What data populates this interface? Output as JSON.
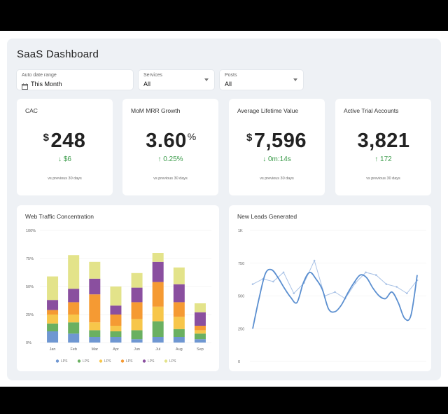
{
  "dashboard": {
    "title": "SaaS Dashboard"
  },
  "filters": [
    {
      "label": "Auto date range",
      "value": "This Month",
      "icon": "calendar-icon"
    },
    {
      "label": "Services",
      "value": "All",
      "icon": "chevron-down-icon"
    },
    {
      "label": "Posts",
      "value": "All",
      "icon": "chevron-down-icon"
    }
  ],
  "kpis": [
    {
      "label": "CAC",
      "prefix": "$",
      "value": "248",
      "suffix": "",
      "delta": "↓ $6",
      "footnote": "vs previous 30 days"
    },
    {
      "label": "MoM MRR Growth",
      "prefix": "",
      "value": "3.60",
      "suffix": "%",
      "delta": "↑ 0.25%",
      "footnote": "vs previous 30 days"
    },
    {
      "label": "Average Lifetime Value",
      "prefix": "$",
      "value": "7,596",
      "suffix": "",
      "delta": "↓ 0m:14s",
      "footnote": "vs previous 30 days"
    },
    {
      "label": "Active Trial Accounts",
      "prefix": "",
      "value": "3,821",
      "suffix": "",
      "delta": "↑ 172",
      "footnote": "vs previous 30 days"
    }
  ],
  "colors": {
    "accent_green": "#3a9b49",
    "series": [
      "#6f97d2",
      "#6ab061",
      "#f7c64a",
      "#f59a33",
      "#8a4f9f",
      "#e3e38a"
    ],
    "line_main": "#5b8fd0",
    "line_secondary": "#a9c2e6"
  },
  "chart_data": [
    {
      "type": "bar",
      "stacked": true,
      "title": "Web Traffic Concentration",
      "categories": [
        "Jan",
        "Feb",
        "Mar",
        "Apr",
        "Jun",
        "Jul",
        "Aug",
        "Sep"
      ],
      "yticks": [
        "100%",
        "75%",
        "50%",
        "25%",
        "0%"
      ],
      "ylim": [
        0,
        100
      ],
      "grid": true,
      "legend_position": "bottom",
      "series": [
        {
          "name": "LPS",
          "values": [
            10,
            8,
            5,
            5,
            3,
            5,
            5,
            3
          ]
        },
        {
          "name": "LPS",
          "values": [
            7,
            10,
            6,
            5,
            8,
            14,
            7,
            5
          ]
        },
        {
          "name": "LPS",
          "values": [
            8,
            7,
            7,
            5,
            10,
            13,
            11,
            3
          ]
        },
        {
          "name": "LPS",
          "values": [
            4,
            11,
            25,
            10,
            15,
            22,
            13,
            4
          ]
        },
        {
          "name": "LPS",
          "values": [
            9,
            12,
            14,
            8,
            13,
            18,
            16,
            12
          ]
        },
        {
          "name": "LPS",
          "values": [
            21,
            30,
            15,
            17,
            13,
            8,
            15,
            8
          ]
        }
      ]
    },
    {
      "type": "line",
      "title": "New Leads Generated",
      "yticks": [
        "1K",
        "750",
        "500",
        "250",
        "0"
      ],
      "ylim": [
        0,
        1000
      ],
      "grid": true,
      "series": [
        {
          "values": [
            250,
            480,
            670,
            700,
            640,
            560,
            490,
            450,
            600,
            680,
            630,
            550,
            400,
            380,
            430,
            520,
            600,
            660,
            640,
            560,
            500,
            480,
            530,
            450,
            330,
            350,
            660
          ]
        },
        {
          "values": [
            590,
            630,
            610,
            680,
            520,
            600,
            770,
            500,
            530,
            480,
            600,
            680,
            660,
            590,
            570,
            520,
            620
          ]
        }
      ]
    }
  ]
}
